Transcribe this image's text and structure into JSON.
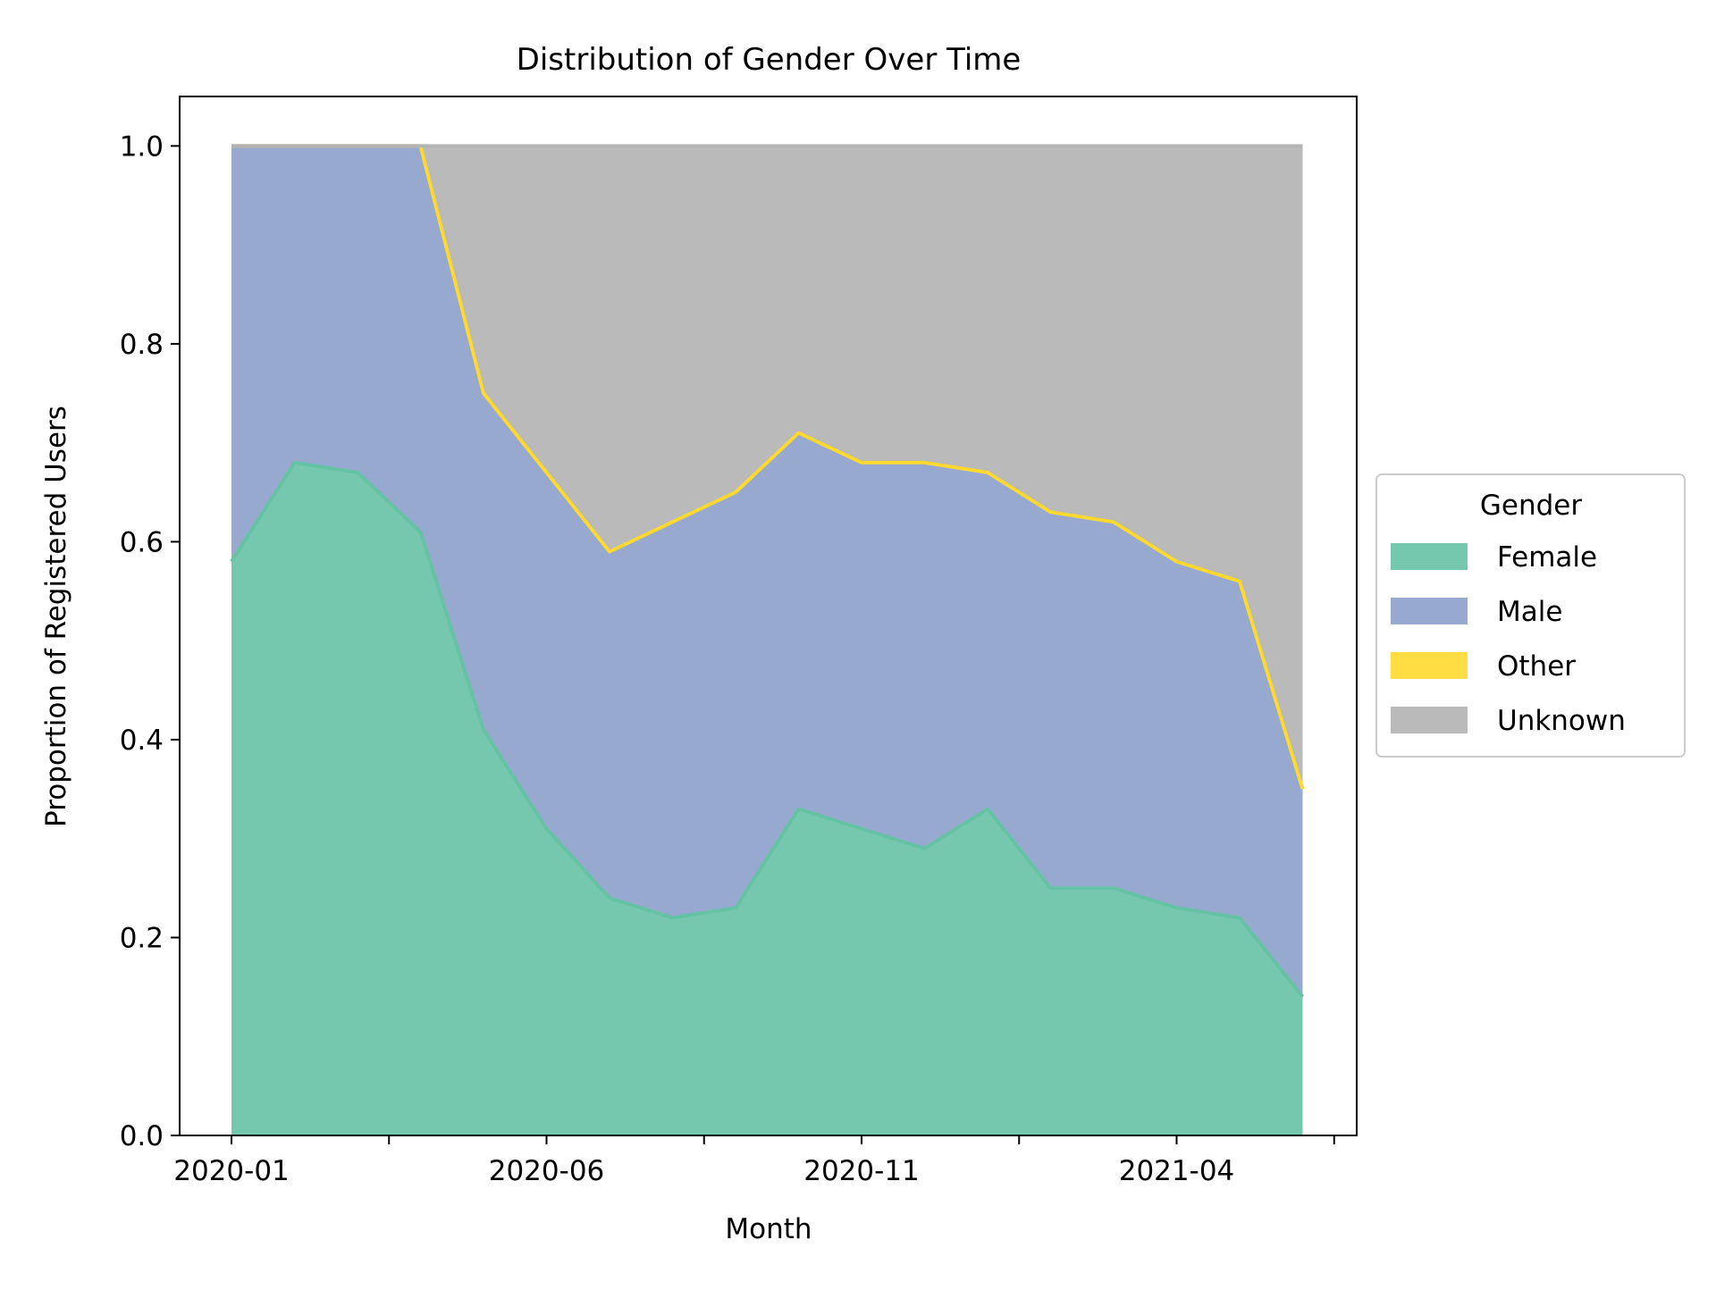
{
  "chart_data": {
    "type": "area",
    "stacked": true,
    "title": "Distribution of Gender Over Time",
    "xlabel": "Month",
    "ylabel": "Proportion of Registered Users",
    "x": [
      "2020-01",
      "2020-02",
      "2020-03",
      "2020-04",
      "2020-05",
      "2020-06",
      "2020-07",
      "2020-08",
      "2020-09",
      "2020-10",
      "2020-11",
      "2020-12",
      "2021-01",
      "2021-02",
      "2021-03",
      "2021-04",
      "2021-05",
      "2021-06"
    ],
    "x_tick_labels": [
      "2020-01",
      "2020-06",
      "2020-11",
      "2021-04"
    ],
    "ylim": [
      0,
      1.05
    ],
    "y_ticks": [
      "0.0",
      "0.2",
      "0.4",
      "0.6",
      "0.8",
      "1.0"
    ],
    "series": [
      {
        "name": "Female",
        "color": "#66c2a5",
        "values": [
          0.58,
          0.68,
          0.67,
          0.61,
          0.41,
          0.31,
          0.24,
          0.22,
          0.23,
          0.33,
          0.31,
          0.29,
          0.33,
          0.25,
          0.25,
          0.23,
          0.22,
          0.14
        ]
      },
      {
        "name": "Male",
        "color": "#8da0cb",
        "values": [
          0.42,
          0.32,
          0.33,
          0.39,
          0.34,
          0.36,
          0.35,
          0.4,
          0.42,
          0.38,
          0.37,
          0.39,
          0.34,
          0.38,
          0.37,
          0.35,
          0.34,
          0.21
        ]
      },
      {
        "name": "Other",
        "color": "#ffd92f",
        "values": [
          0,
          0,
          0,
          0,
          0,
          0,
          0,
          0,
          0,
          0,
          0,
          0,
          0,
          0,
          0,
          0,
          0,
          0
        ]
      },
      {
        "name": "Unknown",
        "color": "#b3b3b3",
        "values": [
          0,
          0,
          0,
          0,
          0.25,
          0.33,
          0.41,
          0.38,
          0.35,
          0.29,
          0.32,
          0.32,
          0.33,
          0.37,
          0.38,
          0.42,
          0.44,
          0.65
        ]
      }
    ],
    "legend": {
      "title": "Gender",
      "placement": "outside-right"
    },
    "grid": false
  }
}
